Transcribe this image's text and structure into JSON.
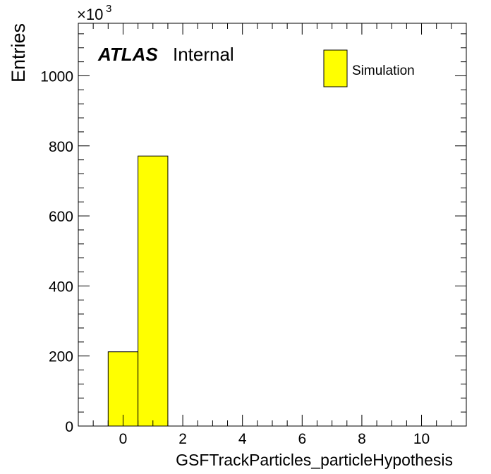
{
  "chart_data": {
    "type": "bar",
    "histogram": true,
    "bins": [
      {
        "low": -0.5,
        "high": 0.5,
        "value": 212
      },
      {
        "low": 0.5,
        "high": 1.5,
        "value": 771
      }
    ],
    "xlabel": "GSFTrackParticles_particleHypothesis",
    "ylabel": "Entries",
    "y_multiplier": "×10",
    "y_multiplier_exp": "3",
    "xlim": [
      -1.5,
      11.5
    ],
    "ylim": [
      0,
      1150
    ],
    "x_ticks": [
      0,
      2,
      4,
      6,
      8,
      10
    ],
    "x_tick_labels": [
      "0",
      "2",
      "4",
      "6",
      "8",
      "10"
    ],
    "y_ticks": [
      0,
      200,
      400,
      600,
      800,
      1000
    ],
    "y_tick_labels": [
      "0",
      "200",
      "400",
      "600",
      "800",
      "1000"
    ],
    "grid": false,
    "legend": {
      "placement": "top-right",
      "entries": [
        {
          "name": "Simulation",
          "color": "#ffff00"
        }
      ]
    },
    "annotations": {
      "experiment": "ATLAS",
      "status": "Internal"
    },
    "colors": {
      "fill": "#ffff00",
      "stroke": "#000000"
    }
  }
}
